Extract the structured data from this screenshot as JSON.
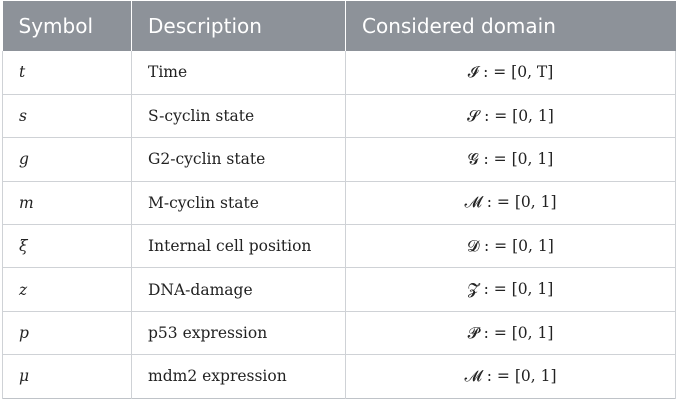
{
  "table": {
    "headers": {
      "symbol": "Symbol",
      "description": "Description",
      "domain": "Considered domain"
    },
    "rows": [
      {
        "symbol": "t",
        "description": "Time",
        "domain": "𝓘 : = [0, T]"
      },
      {
        "symbol": "s",
        "description": "S-cyclin state",
        "domain": "𝓢 : = [0, 1]"
      },
      {
        "symbol": "g",
        "description": "G2-cyclin state",
        "domain": "𝓖 : = [0, 1]"
      },
      {
        "symbol": "m",
        "description": "M-cyclin state",
        "domain": "𝓜 : = [0, 1]"
      },
      {
        "symbol": "ξ",
        "description": "Internal cell position",
        "domain": "𝓓 : = [0, 1]"
      },
      {
        "symbol": "z",
        "description": "DNA-damage",
        "domain": "𝓩 : = [0, 1]"
      },
      {
        "symbol": "p",
        "description": "p53 expression",
        "domain": "𝓟 : = [0, 1]"
      },
      {
        "symbol": "μ",
        "description": "mdm2 expression",
        "domain": "𝓜 : = [0, 1]"
      }
    ]
  },
  "colors": {
    "header_background": "#8d9299",
    "header_text": "#ffffff",
    "grid_lines": "#cfd2d6"
  }
}
